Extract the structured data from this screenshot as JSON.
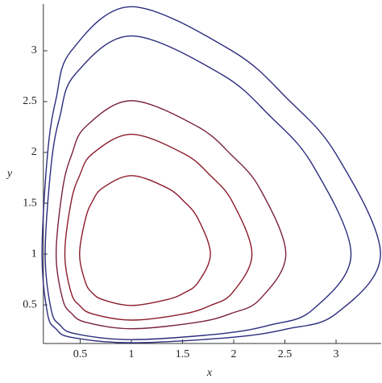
{
  "chart_data": {
    "type": "line",
    "x_label": "x",
    "y_label": "y",
    "xlim": [
      0.14,
      3.44
    ],
    "ylim": [
      0.12,
      3.46
    ],
    "xticks": [
      0.5,
      1,
      1.5,
      2,
      2.5,
      3
    ],
    "yticks": [
      0.5,
      1,
      1.5,
      2,
      2.5,
      3
    ],
    "closed": true,
    "series": [
      {
        "color": "#8c1b2b",
        "x": [
          1.772,
          1.651,
          1.516,
          1.348,
          1,
          0.72,
          0.618,
          0.552,
          0.494,
          0.552,
          0.618,
          0.72,
          1,
          1.348,
          1.516,
          1.651
        ],
        "values": [
          1,
          1.348,
          1.516,
          1.651,
          1.772,
          1.651,
          1.516,
          1.348,
          1,
          0.72,
          0.618,
          0.552,
          0.494,
          0.552,
          0.618,
          0.72
        ]
      },
      {
        "color": "#8c1b2b",
        "x": [
          2.178,
          1.986,
          1.772,
          1.516,
          1,
          0.618,
          0.494,
          0.412,
          0.35,
          0.412,
          0.494,
          0.618,
          1,
          1.516,
          1.772,
          1.986
        ],
        "values": [
          1,
          1.516,
          1.772,
          1.986,
          2.178,
          1.986,
          1.772,
          1.516,
          1,
          0.618,
          0.494,
          0.412,
          0.35,
          0.412,
          0.494,
          0.618
        ]
      },
      {
        "color": "#7a1f45",
        "x": [
          2.509,
          2.255,
          1.976,
          1.645,
          1,
          0.555,
          0.416,
          0.329,
          0.265,
          0.329,
          0.416,
          0.555,
          1,
          1.645,
          1.976,
          2.255
        ],
        "values": [
          1,
          1.645,
          1.976,
          2.255,
          2.509,
          2.255,
          1.976,
          1.645,
          1,
          0.555,
          0.416,
          0.329,
          0.265,
          0.329,
          0.416,
          0.555
        ]
      },
      {
        "color": "#2c2c7e",
        "x": [
          3.146,
          2.767,
          2.356,
          1.883,
          1,
          0.449,
          0.302,
          0.217,
          0.158,
          0.217,
          0.302,
          0.449,
          1,
          1.883,
          2.356,
          2.767
        ],
        "values": [
          1,
          1.883,
          2.356,
          2.767,
          3.146,
          2.767,
          2.356,
          1.883,
          1,
          0.449,
          0.302,
          0.217,
          0.158,
          0.217,
          0.302,
          0.449
        ]
      },
      {
        "color": "#2c2c7e",
        "x": [
          3.434,
          2.998,
          2.526,
          1.986,
          1,
          0.412,
          0.264,
          0.181,
          0.127,
          0.181,
          0.264,
          0.412,
          1,
          1.986,
          2.526,
          2.998
        ],
        "values": [
          1,
          1.986,
          2.526,
          2.998,
          3.434,
          2.998,
          2.526,
          1.986,
          1,
          0.412,
          0.264,
          0.181,
          0.127,
          0.181,
          0.264,
          0.412
        ]
      }
    ]
  }
}
